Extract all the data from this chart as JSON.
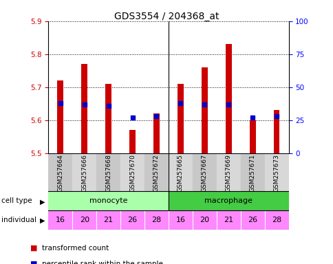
{
  "title": "GDS3554 / 204368_at",
  "samples": [
    "GSM257664",
    "GSM257666",
    "GSM257668",
    "GSM257670",
    "GSM257672",
    "GSM257665",
    "GSM257667",
    "GSM257669",
    "GSM257671",
    "GSM257673"
  ],
  "red_values": [
    5.72,
    5.77,
    5.71,
    5.57,
    5.62,
    5.71,
    5.76,
    5.83,
    5.6,
    5.63
  ],
  "blue_values": [
    0.38,
    0.37,
    0.36,
    0.27,
    0.28,
    0.38,
    0.37,
    0.37,
    0.27,
    0.28
  ],
  "ymin": 5.5,
  "ymax": 5.9,
  "y2min": 0,
  "y2max": 100,
  "yticks": [
    5.5,
    5.6,
    5.7,
    5.8,
    5.9
  ],
  "y2ticks": [
    0,
    25,
    50,
    75,
    100
  ],
  "individuals": [
    "16",
    "20",
    "21",
    "26",
    "28",
    "16",
    "20",
    "21",
    "26",
    "28"
  ],
  "bar_width": 0.25,
  "red_color": "#cc0000",
  "blue_color": "#0000cc",
  "cell_type_color_mono": "#aaffaa",
  "cell_type_color_macro": "#44cc44",
  "individual_color": "#ff88ff",
  "grid_color": "#000000",
  "bg_color": "#ffffff",
  "label_bg": "#cccccc"
}
